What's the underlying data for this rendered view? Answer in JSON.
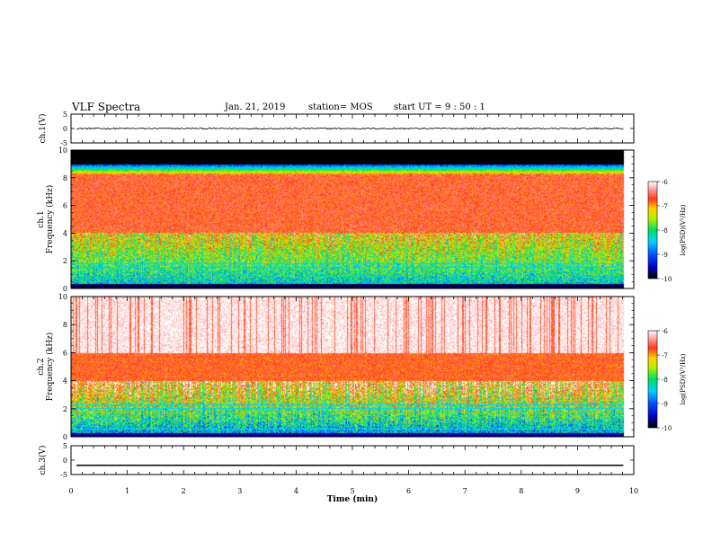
{
  "header": {
    "title": "VLF Spectra",
    "date": "Jan. 21, 2019",
    "station": "station= MOS",
    "start": "start UT =  9 : 50 : 1"
  },
  "chart_data": [
    {
      "type": "line",
      "panel": "ch1-waveform",
      "ylabel": "ch.1(V)",
      "ylim": [
        -5,
        5
      ],
      "y_ticks": [
        "5",
        "0",
        "-5"
      ],
      "y_tick_values": [
        5,
        0,
        -5
      ],
      "series_level": 0,
      "noise_amplitude": 0.25
    },
    {
      "type": "heatmap",
      "panel": "ch1-spectrogram",
      "ylabel": "ch.1\nFrequency (kHz)",
      "ylim": [
        0,
        10
      ],
      "y_ticks": [
        "0",
        "2",
        "4",
        "6",
        "8",
        "10"
      ],
      "colorbar": {
        "label": "log(PSD)(V²/Hz)",
        "range": [
          -10,
          -6
        ],
        "ticks": [
          "-6",
          "-7",
          "-8",
          "-9",
          "-10"
        ]
      }
    },
    {
      "type": "heatmap",
      "panel": "ch2-spectrogram",
      "ylabel": "ch.2\nFrequency (kHz)",
      "ylim": [
        0,
        10
      ],
      "y_ticks": [
        "0",
        "2",
        "4",
        "6",
        "8",
        "10"
      ],
      "colorbar": {
        "label": "log(PSD)(V²/Hz)",
        "range": [
          -10,
          -6
        ],
        "ticks": [
          "-6",
          "-7",
          "-8",
          "-9",
          "-10"
        ]
      }
    },
    {
      "type": "line",
      "panel": "ch3-waveform",
      "ylabel": "ch.3(V)",
      "ylim": [
        -5,
        5
      ],
      "y_ticks": [
        "5",
        "0",
        "-5"
      ],
      "y_tick_values": [
        5,
        0,
        -5
      ],
      "series_level": -1.8,
      "noise_amplitude": 0.0
    }
  ],
  "x_axis": {
    "label": "Time (min)",
    "xlim": [
      0,
      10
    ],
    "ticks": [
      "0",
      "1",
      "2",
      "3",
      "4",
      "5",
      "6",
      "7",
      "8",
      "9",
      "10"
    ],
    "data_end": 9.83
  }
}
